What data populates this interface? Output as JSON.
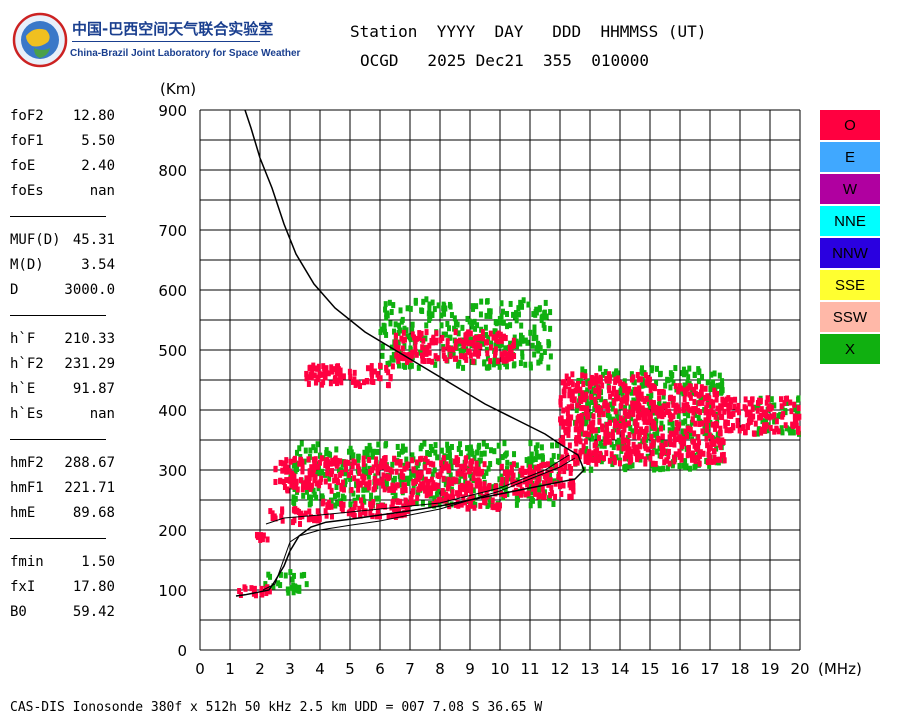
{
  "logo": {
    "cn": "中国-巴西空间天气联合实验室",
    "en": "China-Brazil Joint Laboratory for Space Weather"
  },
  "header": {
    "line1": "Station  YYYY  DAY   DDD  HHMMSS (UT)",
    "line2": "OCGD   2025 Dec21  355  010000"
  },
  "params": [
    {
      "name": "foF2",
      "value": "12.80"
    },
    {
      "name": "foF1",
      "value": "5.50"
    },
    {
      "name": "foE",
      "value": "2.40"
    },
    {
      "name": "foEs",
      "value": "nan"
    },
    {
      "sep": true
    },
    {
      "name": "MUF(D)",
      "value": "45.31"
    },
    {
      "name": "M(D)",
      "value": "3.54"
    },
    {
      "name": "D",
      "value": "3000.0"
    },
    {
      "sep": true
    },
    {
      "name": "h`F",
      "value": "210.33"
    },
    {
      "name": "h`F2",
      "value": "231.29"
    },
    {
      "name": "h`E",
      "value": "91.87"
    },
    {
      "name": "h`Es",
      "value": "nan"
    },
    {
      "sep": true
    },
    {
      "name": "hmF2",
      "value": "288.67"
    },
    {
      "name": "hmF1",
      "value": "221.71"
    },
    {
      "name": "hmE",
      "value": "89.68"
    },
    {
      "sep": true
    },
    {
      "name": "fmin",
      "value": "1.50"
    },
    {
      "name": "fxI",
      "value": "17.80"
    },
    {
      "name": "B0",
      "value": "59.42"
    }
  ],
  "legend": [
    {
      "label": "O",
      "color": "#ff0040"
    },
    {
      "label": "E",
      "color": "#40a8ff"
    },
    {
      "label": "W",
      "color": "#b000a0"
    },
    {
      "label": "NNE",
      "color": "#00ffff"
    },
    {
      "label": "NNW",
      "color": "#2a00e0"
    },
    {
      "label": "SSE",
      "color": "#ffff30"
    },
    {
      "label": "SSW",
      "color": "#ffb8a8"
    },
    {
      "label": "X",
      "color": "#10b010"
    }
  ],
  "footer": "CAS-DIS Ionosonde 380f x 512h 50 kHz 2.5 km UDD = 007 7.08 S 36.65 W",
  "chart_data": {
    "type": "scatter",
    "xlabel": "(MHz)",
    "ylabel": "(Km)",
    "xlim": [
      0,
      20
    ],
    "ylim": [
      0,
      900
    ],
    "xticks": [
      0,
      1,
      2,
      3,
      4,
      5,
      6,
      7,
      8,
      9,
      10,
      11,
      12,
      13,
      14,
      15,
      16,
      17,
      18,
      19,
      20
    ],
    "yticks": [
      0,
      100,
      200,
      300,
      400,
      500,
      600,
      700,
      800,
      900
    ],
    "grid": true,
    "series": [
      {
        "color": "#ff0040",
        "regions": [
          {
            "x": [
              1.2,
              2.4
            ],
            "y": [
              90,
              105
            ]
          },
          {
            "x": [
              1.8,
              2.4
            ],
            "y": [
              180,
              192
            ]
          },
          {
            "x": [
              2.3,
              4.0
            ],
            "y": [
              210,
              235
            ]
          },
          {
            "x": [
              4.0,
              7.0
            ],
            "y": [
              220,
              250
            ]
          },
          {
            "x": [
              7.0,
              10.0
            ],
            "y": [
              235,
              275
            ]
          },
          {
            "x": [
              10.0,
              12.5
            ],
            "y": [
              255,
              310
            ]
          },
          {
            "x": [
              2.5,
              9.5
            ],
            "y": [
              265,
              320
            ]
          },
          {
            "x": [
              3.5,
              6.5
            ],
            "y": [
              440,
              475
            ]
          },
          {
            "x": [
              6.5,
              10.5
            ],
            "y": [
              480,
              530
            ]
          },
          {
            "x": [
              12.0,
              15.0
            ],
            "y": [
              310,
              460
            ]
          },
          {
            "x": [
              15.0,
              17.5
            ],
            "y": [
              310,
              440
            ]
          },
          {
            "x": [
              17.5,
              20.0
            ],
            "y": [
              360,
              420
            ]
          }
        ]
      },
      {
        "color": "#10b010",
        "regions": [
          {
            "x": [
              2.0,
              3.6
            ],
            "y": [
              92,
              130
            ]
          },
          {
            "x": [
              3.0,
              12.0
            ],
            "y": [
              240,
              345
            ]
          },
          {
            "x": [
              6.0,
              11.7
            ],
            "y": [
              470,
              585
            ]
          },
          {
            "x": [
              12.5,
              17.5
            ],
            "y": [
              300,
              470
            ]
          },
          {
            "x": [
              18.5,
              20.0
            ],
            "y": [
              360,
              420
            ]
          }
        ]
      }
    ],
    "profile_lines": [
      [
        [
          1.2,
          90
        ],
        [
          1.5,
          92
        ],
        [
          2.0,
          97
        ],
        [
          2.3,
          100
        ],
        [
          2.5,
          115
        ],
        [
          2.8,
          140
        ],
        [
          3.0,
          165
        ],
        [
          3.3,
          190
        ],
        [
          3.7,
          205
        ],
        [
          4.2,
          213
        ],
        [
          5.0,
          218
        ],
        [
          6.0,
          225
        ],
        [
          7.0,
          232
        ],
        [
          8.0,
          240
        ],
        [
          9.0,
          250
        ],
        [
          10.0,
          260
        ],
        [
          11.0,
          270
        ],
        [
          11.8,
          278
        ],
        [
          12.5,
          285
        ],
        [
          12.8,
          300
        ],
        [
          12.6,
          325
        ],
        [
          12.1,
          340
        ],
        [
          11.5,
          360
        ],
        [
          10.5,
          385
        ],
        [
          9.5,
          410
        ],
        [
          8.5,
          440
        ],
        [
          7.5,
          470
        ],
        [
          6.5,
          500
        ],
        [
          5.5,
          530
        ],
        [
          4.5,
          570
        ],
        [
          3.8,
          610
        ],
        [
          3.2,
          660
        ],
        [
          2.8,
          710
        ],
        [
          2.4,
          770
        ],
        [
          2.0,
          820
        ],
        [
          1.7,
          870
        ],
        [
          1.5,
          900
        ]
      ],
      [
        [
          2.1,
          100
        ],
        [
          2.5,
          110
        ],
        [
          3.0,
          180
        ],
        [
          3.3,
          190
        ],
        [
          4.0,
          200
        ],
        [
          5.0,
          208
        ],
        [
          6.0,
          215
        ],
        [
          7.0,
          225
        ],
        [
          8.0,
          235
        ],
        [
          9.0,
          250
        ],
        [
          10.0,
          265
        ],
        [
          11.0,
          285
        ],
        [
          12.0,
          305
        ],
        [
          12.5,
          320
        ]
      ],
      [
        [
          2.2,
          210
        ],
        [
          2.8,
          220
        ],
        [
          4.0,
          225
        ],
        [
          6.0,
          235
        ],
        [
          8.0,
          245
        ],
        [
          10.0,
          270
        ],
        [
          11.5,
          300
        ],
        [
          12.3,
          325
        ]
      ]
    ]
  }
}
